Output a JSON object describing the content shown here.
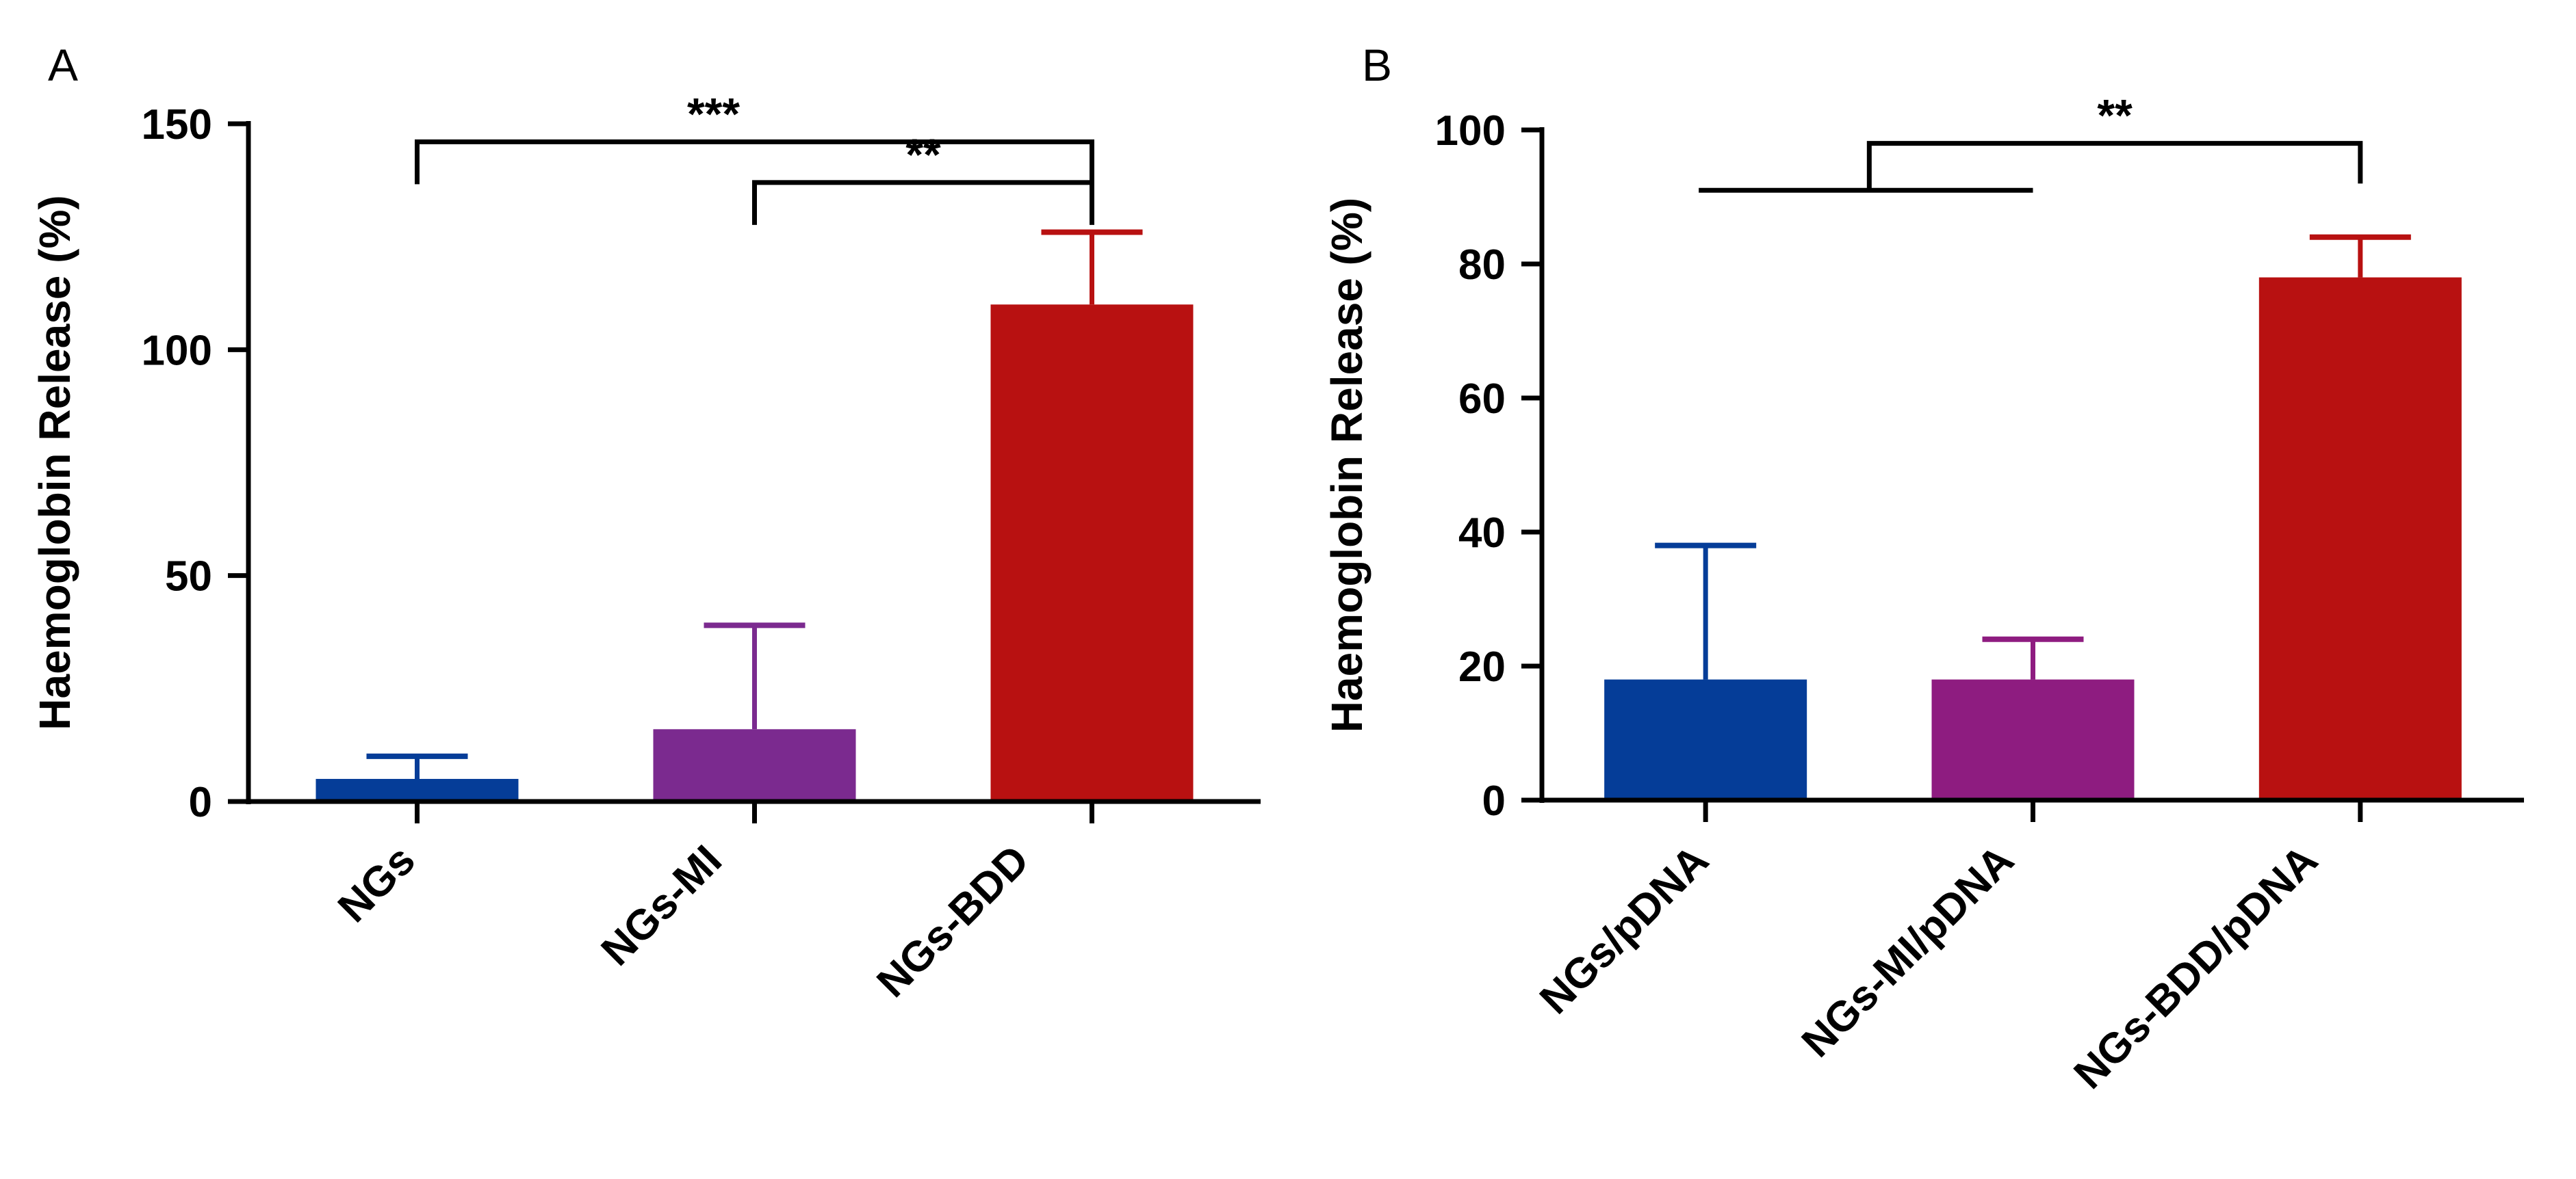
{
  "colors": {
    "blue": "#053d98",
    "purple": "#7b2a8f",
    "magenta": "#8e1c80",
    "red": "#b81111",
    "axis": "#000000"
  },
  "chart_data": [
    {
      "panel": "A",
      "type": "bar",
      "title": "",
      "xlabel": "",
      "ylabel": "Haemoglobin Release (%)",
      "ylim": [
        0,
        150
      ],
      "yticks": [
        0,
        50,
        100,
        150
      ],
      "categories": [
        "NGs",
        "NGs-MI",
        "NGs-BDD"
      ],
      "values": [
        5,
        16,
        110
      ],
      "errors": [
        5,
        23,
        16
      ],
      "colors": [
        "#053d98",
        "#7b2a8f",
        "#b81111"
      ],
      "brackets": [
        {
          "from": 0,
          "to": 2,
          "label": "***",
          "y": 146
        },
        {
          "from": 1,
          "to": 2,
          "label": "**",
          "y": 137
        }
      ]
    },
    {
      "panel": "B",
      "type": "bar",
      "title": "",
      "xlabel": "",
      "ylabel": "Haemoglobin Release (%)",
      "ylim": [
        0,
        100
      ],
      "yticks": [
        0,
        20,
        40,
        60,
        80,
        100
      ],
      "categories": [
        "NGs/pDNA",
        "NGs-MI/pDNA",
        "NGs-BDD/pDNA"
      ],
      "values": [
        18,
        18,
        78
      ],
      "errors": [
        20,
        6,
        6
      ],
      "colors": [
        "#053d98",
        "#8e1c80",
        "#b81111"
      ],
      "brackets": [
        {
          "group": [
            0,
            1
          ],
          "to": 2,
          "label": "**",
          "y": 98,
          "group_y": 91
        }
      ]
    }
  ]
}
